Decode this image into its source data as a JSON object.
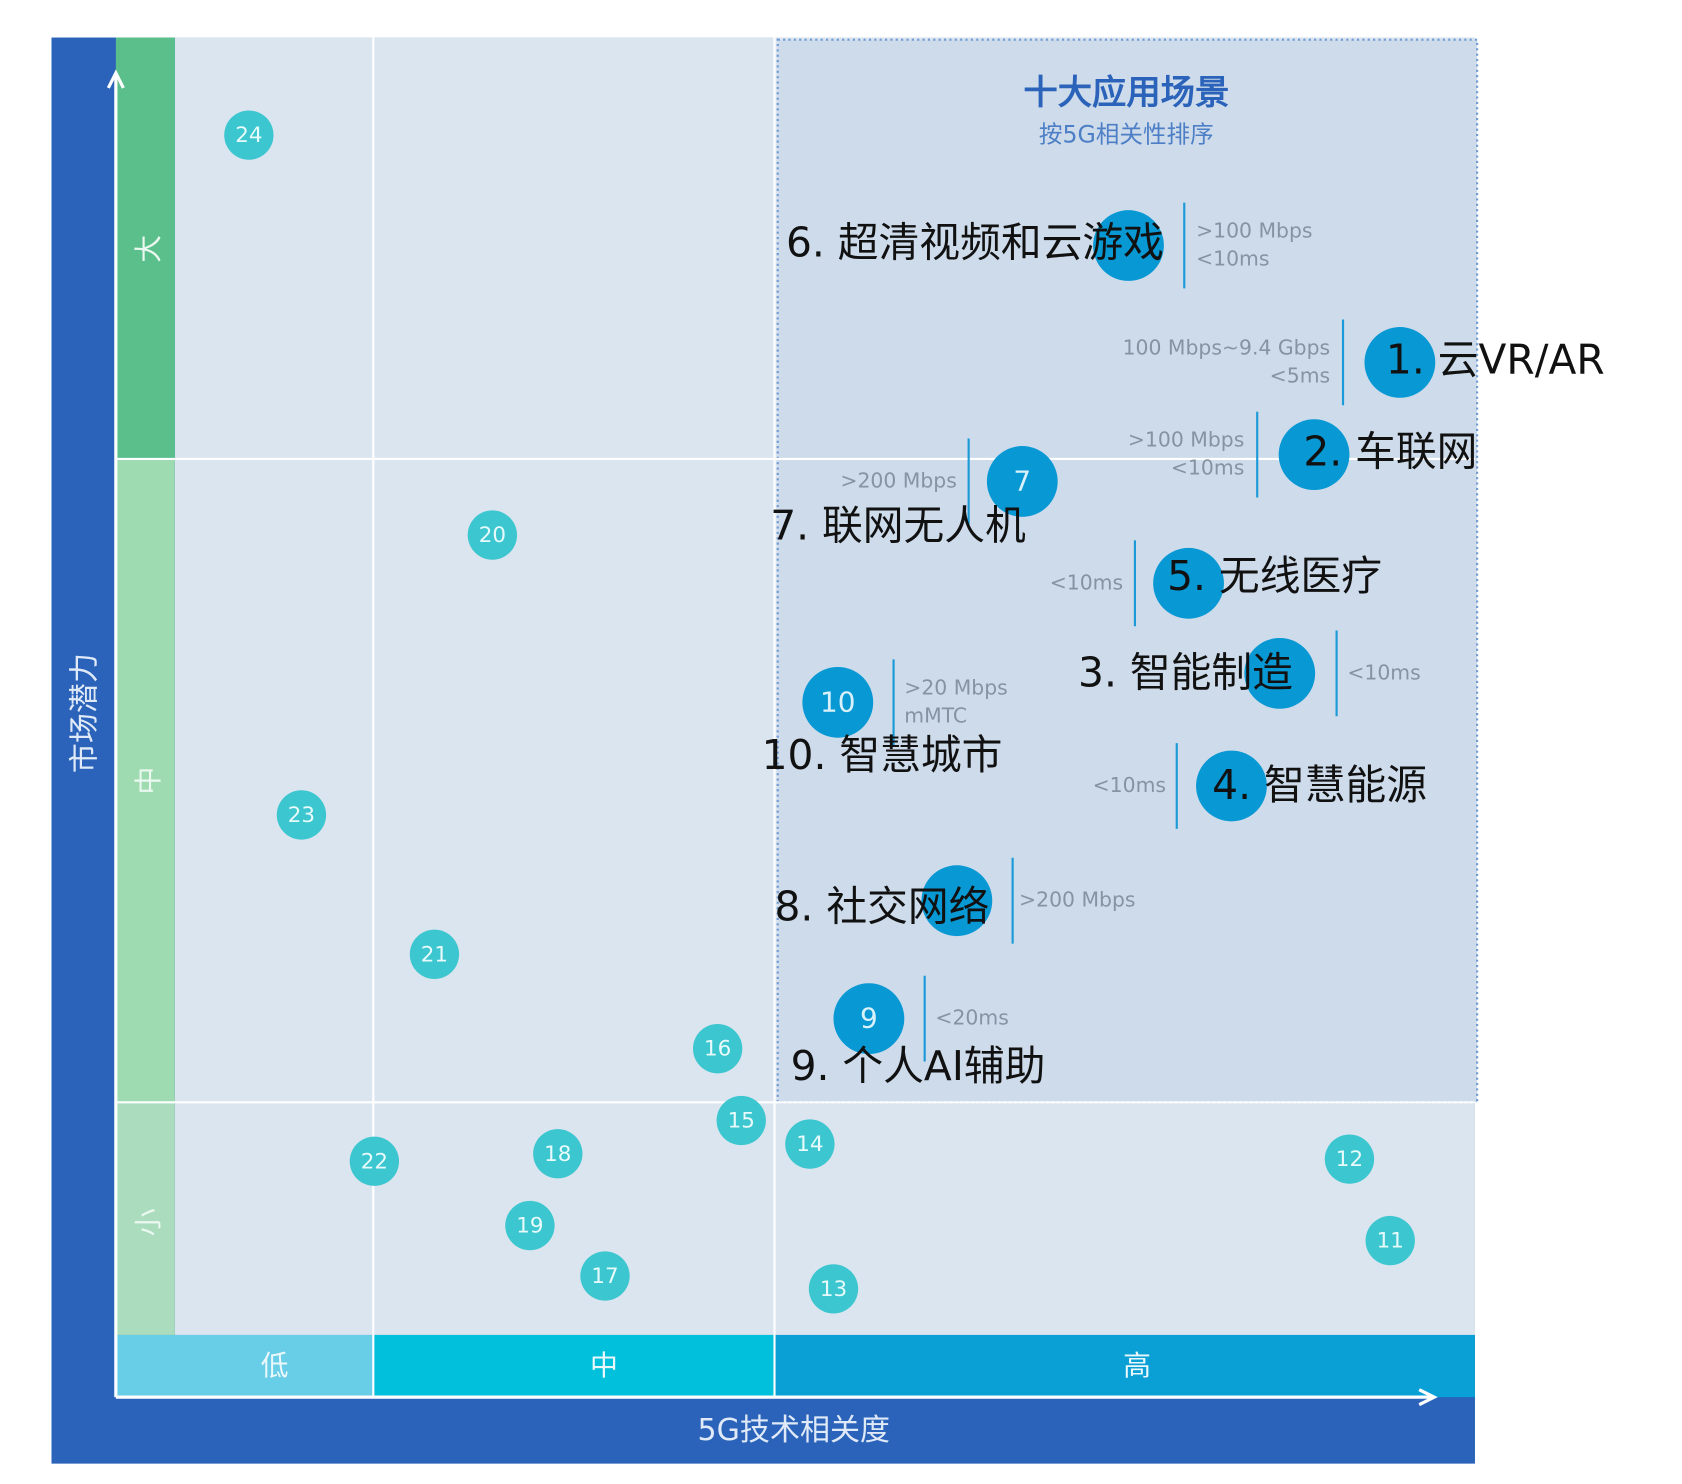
{
  "title": "十大应用场景",
  "subtitle": "按5G相关性排序",
  "x_axis": {
    "label": "5G技术相关度",
    "levels": [
      "低",
      "中",
      "高"
    ]
  },
  "y_axis": {
    "label": "市场潜力",
    "levels": [
      "大",
      "中",
      "小"
    ]
  },
  "apps": [
    {
      "name": "1. 云VR/AR",
      "specs": [
        "100 Mbps~9.4 Gbps",
        "<5ms"
      ]
    },
    {
      "name": "2. 车联网",
      "specs": [
        ">100 Mbps",
        "<10ms"
      ]
    },
    {
      "name": "3. 智能制造",
      "specs": [
        "<10ms"
      ]
    },
    {
      "name": "4. 智慧能源",
      "specs": [
        "<10ms"
      ]
    },
    {
      "name": "5. 无线医疗",
      "specs": [
        "<10ms"
      ]
    },
    {
      "name": "6. 超清视频和云游戏",
      "specs": [
        ">100 Mbps",
        "<10ms"
      ]
    },
    {
      "name": "7. 联网无人机",
      "number": "7",
      "specs": [
        ">200 Mbps"
      ]
    },
    {
      "name": "8. 社交网络",
      "specs": [
        ">200 Mbps"
      ]
    },
    {
      "name": "9. 个人AI辅助",
      "number": "9",
      "specs": [
        "<20ms"
      ]
    },
    {
      "name": "10. 智慧城市",
      "number": "10",
      "specs": [
        ">20 Mbps",
        "mMTC"
      ]
    }
  ],
  "others": [
    "11",
    "12",
    "13",
    "14",
    "15",
    "16",
    "17",
    "18",
    "19",
    "20",
    "21",
    "22",
    "23",
    "24"
  ]
}
